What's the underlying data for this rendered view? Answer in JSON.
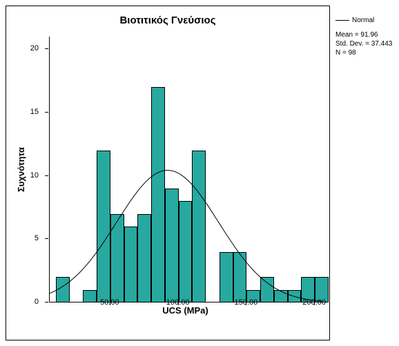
{
  "chart": {
    "type": "histogram",
    "title": "Βιοτιτικός Γνεύσιος",
    "xlabel": "UCS (MPa)",
    "ylabel": "Συχνότητα",
    "bar_color": "#27a9a0",
    "bar_border": "#000000",
    "x_ticks": [
      50,
      100,
      150,
      200
    ],
    "x_min": 5,
    "x_max": 205,
    "y_ticks": [
      0,
      5,
      10,
      15,
      20
    ],
    "y_min": 0,
    "y_max": 21,
    "bin_width": 10,
    "bins": [
      {
        "start": 10,
        "count": 2
      },
      {
        "start": 20,
        "count": 0
      },
      {
        "start": 30,
        "count": 1
      },
      {
        "start": 40,
        "count": 12
      },
      {
        "start": 50,
        "count": 7
      },
      {
        "start": 60,
        "count": 6
      },
      {
        "start": 70,
        "count": 7
      },
      {
        "start": 80,
        "count": 17
      },
      {
        "start": 90,
        "count": 9
      },
      {
        "start": 100,
        "count": 8
      },
      {
        "start": 110,
        "count": 12
      },
      {
        "start": 120,
        "count": 0
      },
      {
        "start": 130,
        "count": 4
      },
      {
        "start": 140,
        "count": 4
      },
      {
        "start": 150,
        "count": 1
      },
      {
        "start": 160,
        "count": 2
      },
      {
        "start": 170,
        "count": 1
      },
      {
        "start": 180,
        "count": 1
      },
      {
        "start": 190,
        "count": 2
      },
      {
        "start": 200,
        "count": 2
      }
    ],
    "normal_curve": {
      "mean": 91.96,
      "std_dev": 37.443,
      "n": 98
    }
  },
  "legend": {
    "normal_label": "Normal",
    "mean_label": "Mean = 91.96",
    "stddev_label": "Std. Dev. = 37.443",
    "n_label": "N = 98"
  }
}
